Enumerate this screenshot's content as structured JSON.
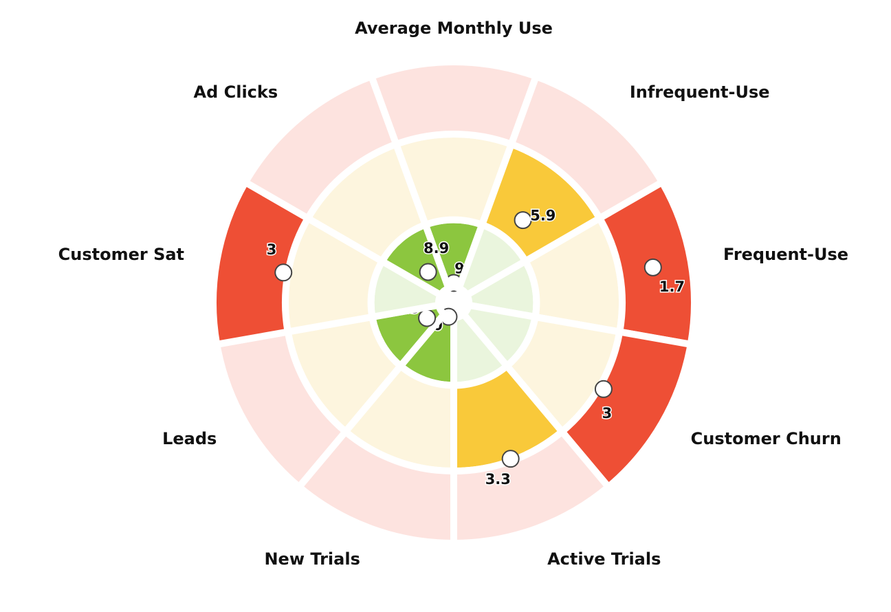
{
  "chart_data": {
    "type": "polar_bar",
    "categories": [
      "Average Monthly Use",
      "Infrequent-Use",
      "Frequent-Use",
      "Customer Churn",
      "Active Trials",
      "New Trials",
      "Leads",
      "Customer Sat",
      "Ad Clicks"
    ],
    "values": [
      9.8,
      5.9,
      1.7,
      3,
      3.3,
      10,
      9.3,
      3,
      8.9
    ],
    "ylim": [
      10,
      0
    ],
    "bands": [
      {
        "from": 10,
        "to": 7,
        "color": "#8cc63f",
        "pale": "#eaf5dd"
      },
      {
        "from": 7,
        "to": 3.2,
        "color": "#f9c93a",
        "pale": "#fdf5de"
      },
      {
        "from": 3.2,
        "to": 0,
        "color": "#ee4f35",
        "pale": "#fde3df"
      }
    ]
  }
}
